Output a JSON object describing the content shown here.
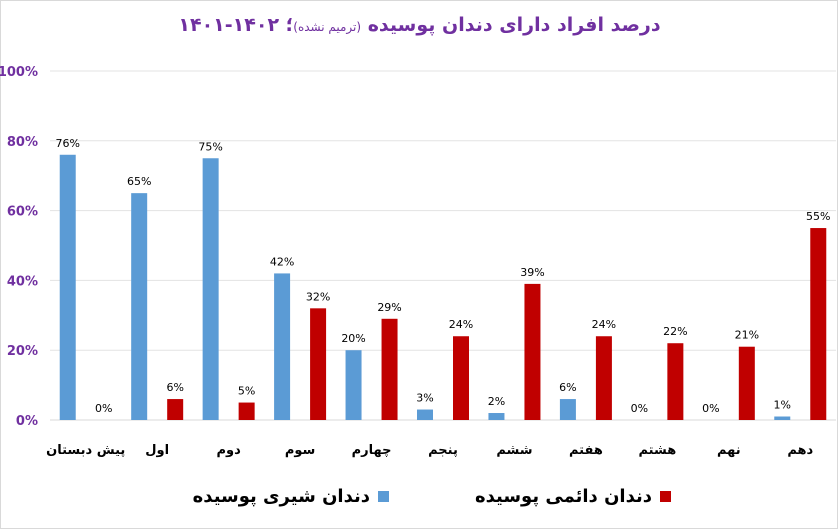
{
  "chart_data": {
    "type": "bar",
    "title": "درصد افراد دارای دندان پوسیده",
    "title_note": "(ترمیم نشده)",
    "title_years": "؛ ۱۴۰۲-۱۴۰۱",
    "categories": [
      "پیش دبستان",
      "اول",
      "دوم",
      "سوم",
      "چهارم",
      "پنجم",
      "ششم",
      "هفتم",
      "هشتم",
      "نهم",
      "دهم"
    ],
    "series": [
      {
        "name": "دندان شیری پوسیده",
        "color": "#5b9bd5",
        "values": [
          76,
          65,
          75,
          42,
          20,
          3,
          2,
          6,
          0,
          0,
          1
        ]
      },
      {
        "name": "دندان دائمی پوسیده",
        "color": "#c00000",
        "values": [
          0,
          6,
          5,
          32,
          29,
          24,
          39,
          24,
          22,
          21,
          55
        ]
      }
    ],
    "ylim": [
      0,
      100
    ],
    "yticks": [
      "0%",
      "20%",
      "40%",
      "60%",
      "80%",
      "100%"
    ],
    "ytick_values": [
      0,
      20,
      40,
      60,
      80,
      100
    ],
    "value_suffix": "%",
    "grid": true,
    "legend_position": "bottom",
    "ytick_color": "#7030a0",
    "title_color": "#7030a0"
  }
}
